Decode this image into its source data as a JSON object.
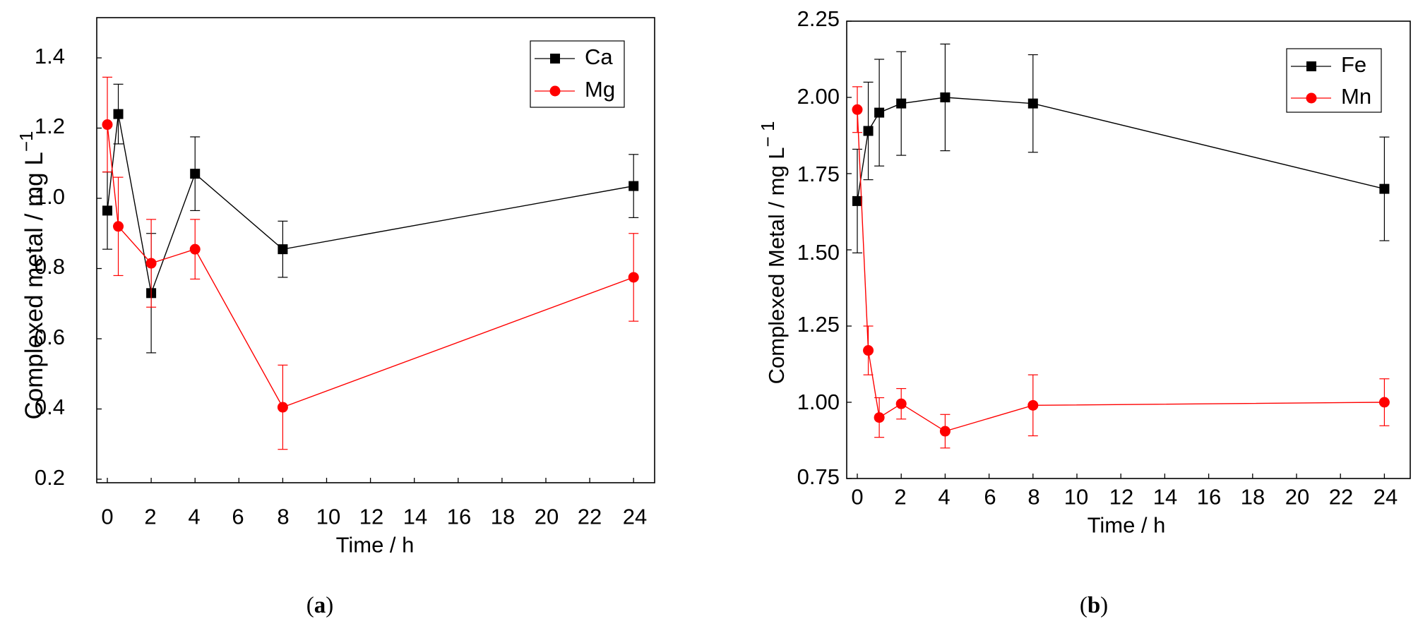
{
  "chart_data": [
    {
      "type": "line",
      "panel_label": "a",
      "xlabel": "Time / h",
      "ylabel_main": "Complexed metal / mg L",
      "ylabel_sup": "−1",
      "x_ticks": [
        "0",
        "2",
        "4",
        "6",
        "8",
        "10",
        "12",
        "14",
        "16",
        "18",
        "20",
        "22",
        "24"
      ],
      "y_ticks": [
        "0.2",
        "0.4",
        "0.6",
        "0.8",
        "1.0",
        "1.2",
        "1.4"
      ],
      "xlim": [
        -0.6,
        25
      ],
      "ylim": [
        0.2,
        1.5
      ],
      "legend_position": "top-right",
      "series": [
        {
          "name": "Ca",
          "color": "#000000",
          "marker": "square",
          "x": [
            0,
            0.5,
            2,
            4,
            8,
            24
          ],
          "y": [
            0.965,
            1.24,
            0.73,
            1.07,
            0.855,
            1.035
          ],
          "err": [
            0.11,
            0.085,
            0.17,
            0.105,
            0.08,
            0.09
          ]
        },
        {
          "name": "Mg",
          "color": "#ff0000",
          "marker": "circle",
          "x": [
            0,
            0.5,
            2,
            4,
            8,
            24
          ],
          "y": [
            1.21,
            0.92,
            0.815,
            0.855,
            0.405,
            0.775
          ],
          "err": [
            0.135,
            0.14,
            0.125,
            0.085,
            0.12,
            0.125
          ]
        }
      ]
    },
    {
      "type": "line",
      "panel_label": "b",
      "xlabel": "Time / h",
      "ylabel_main": "Complexed Metal / mg L",
      "ylabel_sup": "− 1",
      "x_ticks": [
        "0",
        "2",
        "4",
        "6",
        "8",
        "10",
        "12",
        "14",
        "16",
        "18",
        "20",
        "22",
        "24"
      ],
      "y_ticks": [
        "0.75",
        "1.00",
        "1.25",
        "1.50",
        "1.75",
        "2.00",
        "2.25"
      ],
      "xlim": [
        -0.6,
        25
      ],
      "ylim": [
        0.75,
        2.25
      ],
      "legend_position": "top-right",
      "series": [
        {
          "name": "Fe",
          "color": "#000000",
          "marker": "square",
          "x": [
            0,
            0.5,
            1,
            2,
            4,
            8,
            24
          ],
          "y": [
            1.66,
            1.89,
            1.95,
            1.98,
            2.0,
            1.98,
            1.7
          ],
          "err": [
            0.17,
            0.16,
            0.175,
            0.17,
            0.175,
            0.16,
            0.17
          ]
        },
        {
          "name": "Mn",
          "color": "#ff0000",
          "marker": "circle",
          "x": [
            0,
            0.5,
            1,
            2,
            4,
            8,
            24
          ],
          "y": [
            1.96,
            1.17,
            0.95,
            0.995,
            0.905,
            0.99,
            1.0
          ],
          "err": [
            0.075,
            0.08,
            0.065,
            0.05,
            0.055,
            0.1,
            0.077
          ]
        }
      ]
    }
  ]
}
